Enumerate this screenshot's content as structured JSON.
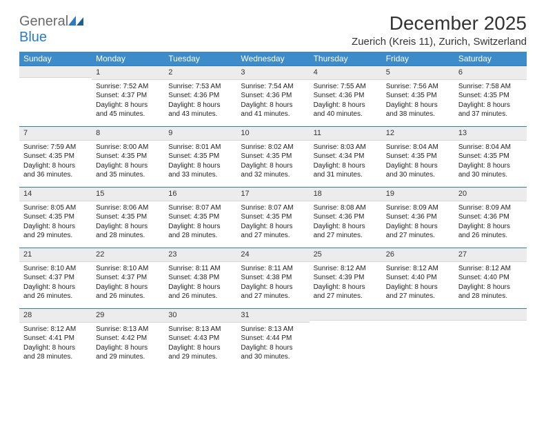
{
  "colors": {
    "header_bg": "#3d8bc9",
    "header_text": "#ffffff",
    "grid_line": "#2a7bbf",
    "daynum_bg": "#ececec",
    "body_text": "#222222",
    "page_bg": "#ffffff",
    "logo_gray": "#6a6a6a",
    "logo_blue": "#2a7bbf"
  },
  "logo": {
    "word1": "General",
    "word2": "Blue"
  },
  "title": "December 2025",
  "location": "Zuerich (Kreis 11), Zurich, Switzerland",
  "weekdays": [
    "Sunday",
    "Monday",
    "Tuesday",
    "Wednesday",
    "Thursday",
    "Friday",
    "Saturday"
  ],
  "weeks": [
    [
      {
        "n": "",
        "sunrise": "",
        "sunset": "",
        "daylight": ""
      },
      {
        "n": "1",
        "sunrise": "Sunrise: 7:52 AM",
        "sunset": "Sunset: 4:37 PM",
        "daylight": "Daylight: 8 hours and 45 minutes."
      },
      {
        "n": "2",
        "sunrise": "Sunrise: 7:53 AM",
        "sunset": "Sunset: 4:36 PM",
        "daylight": "Daylight: 8 hours and 43 minutes."
      },
      {
        "n": "3",
        "sunrise": "Sunrise: 7:54 AM",
        "sunset": "Sunset: 4:36 PM",
        "daylight": "Daylight: 8 hours and 41 minutes."
      },
      {
        "n": "4",
        "sunrise": "Sunrise: 7:55 AM",
        "sunset": "Sunset: 4:36 PM",
        "daylight": "Daylight: 8 hours and 40 minutes."
      },
      {
        "n": "5",
        "sunrise": "Sunrise: 7:56 AM",
        "sunset": "Sunset: 4:35 PM",
        "daylight": "Daylight: 8 hours and 38 minutes."
      },
      {
        "n": "6",
        "sunrise": "Sunrise: 7:58 AM",
        "sunset": "Sunset: 4:35 PM",
        "daylight": "Daylight: 8 hours and 37 minutes."
      }
    ],
    [
      {
        "n": "7",
        "sunrise": "Sunrise: 7:59 AM",
        "sunset": "Sunset: 4:35 PM",
        "daylight": "Daylight: 8 hours and 36 minutes."
      },
      {
        "n": "8",
        "sunrise": "Sunrise: 8:00 AM",
        "sunset": "Sunset: 4:35 PM",
        "daylight": "Daylight: 8 hours and 35 minutes."
      },
      {
        "n": "9",
        "sunrise": "Sunrise: 8:01 AM",
        "sunset": "Sunset: 4:35 PM",
        "daylight": "Daylight: 8 hours and 33 minutes."
      },
      {
        "n": "10",
        "sunrise": "Sunrise: 8:02 AM",
        "sunset": "Sunset: 4:35 PM",
        "daylight": "Daylight: 8 hours and 32 minutes."
      },
      {
        "n": "11",
        "sunrise": "Sunrise: 8:03 AM",
        "sunset": "Sunset: 4:34 PM",
        "daylight": "Daylight: 8 hours and 31 minutes."
      },
      {
        "n": "12",
        "sunrise": "Sunrise: 8:04 AM",
        "sunset": "Sunset: 4:35 PM",
        "daylight": "Daylight: 8 hours and 30 minutes."
      },
      {
        "n": "13",
        "sunrise": "Sunrise: 8:04 AM",
        "sunset": "Sunset: 4:35 PM",
        "daylight": "Daylight: 8 hours and 30 minutes."
      }
    ],
    [
      {
        "n": "14",
        "sunrise": "Sunrise: 8:05 AM",
        "sunset": "Sunset: 4:35 PM",
        "daylight": "Daylight: 8 hours and 29 minutes."
      },
      {
        "n": "15",
        "sunrise": "Sunrise: 8:06 AM",
        "sunset": "Sunset: 4:35 PM",
        "daylight": "Daylight: 8 hours and 28 minutes."
      },
      {
        "n": "16",
        "sunrise": "Sunrise: 8:07 AM",
        "sunset": "Sunset: 4:35 PM",
        "daylight": "Daylight: 8 hours and 28 minutes."
      },
      {
        "n": "17",
        "sunrise": "Sunrise: 8:07 AM",
        "sunset": "Sunset: 4:35 PM",
        "daylight": "Daylight: 8 hours and 27 minutes."
      },
      {
        "n": "18",
        "sunrise": "Sunrise: 8:08 AM",
        "sunset": "Sunset: 4:36 PM",
        "daylight": "Daylight: 8 hours and 27 minutes."
      },
      {
        "n": "19",
        "sunrise": "Sunrise: 8:09 AM",
        "sunset": "Sunset: 4:36 PM",
        "daylight": "Daylight: 8 hours and 27 minutes."
      },
      {
        "n": "20",
        "sunrise": "Sunrise: 8:09 AM",
        "sunset": "Sunset: 4:36 PM",
        "daylight": "Daylight: 8 hours and 26 minutes."
      }
    ],
    [
      {
        "n": "21",
        "sunrise": "Sunrise: 8:10 AM",
        "sunset": "Sunset: 4:37 PM",
        "daylight": "Daylight: 8 hours and 26 minutes."
      },
      {
        "n": "22",
        "sunrise": "Sunrise: 8:10 AM",
        "sunset": "Sunset: 4:37 PM",
        "daylight": "Daylight: 8 hours and 26 minutes."
      },
      {
        "n": "23",
        "sunrise": "Sunrise: 8:11 AM",
        "sunset": "Sunset: 4:38 PM",
        "daylight": "Daylight: 8 hours and 26 minutes."
      },
      {
        "n": "24",
        "sunrise": "Sunrise: 8:11 AM",
        "sunset": "Sunset: 4:38 PM",
        "daylight": "Daylight: 8 hours and 27 minutes."
      },
      {
        "n": "25",
        "sunrise": "Sunrise: 8:12 AM",
        "sunset": "Sunset: 4:39 PM",
        "daylight": "Daylight: 8 hours and 27 minutes."
      },
      {
        "n": "26",
        "sunrise": "Sunrise: 8:12 AM",
        "sunset": "Sunset: 4:40 PM",
        "daylight": "Daylight: 8 hours and 27 minutes."
      },
      {
        "n": "27",
        "sunrise": "Sunrise: 8:12 AM",
        "sunset": "Sunset: 4:40 PM",
        "daylight": "Daylight: 8 hours and 28 minutes."
      }
    ],
    [
      {
        "n": "28",
        "sunrise": "Sunrise: 8:12 AM",
        "sunset": "Sunset: 4:41 PM",
        "daylight": "Daylight: 8 hours and 28 minutes."
      },
      {
        "n": "29",
        "sunrise": "Sunrise: 8:13 AM",
        "sunset": "Sunset: 4:42 PM",
        "daylight": "Daylight: 8 hours and 29 minutes."
      },
      {
        "n": "30",
        "sunrise": "Sunrise: 8:13 AM",
        "sunset": "Sunset: 4:43 PM",
        "daylight": "Daylight: 8 hours and 29 minutes."
      },
      {
        "n": "31",
        "sunrise": "Sunrise: 8:13 AM",
        "sunset": "Sunset: 4:44 PM",
        "daylight": "Daylight: 8 hours and 30 minutes."
      },
      {
        "n": "",
        "sunrise": "",
        "sunset": "",
        "daylight": ""
      },
      {
        "n": "",
        "sunrise": "",
        "sunset": "",
        "daylight": ""
      },
      {
        "n": "",
        "sunrise": "",
        "sunset": "",
        "daylight": ""
      }
    ]
  ]
}
